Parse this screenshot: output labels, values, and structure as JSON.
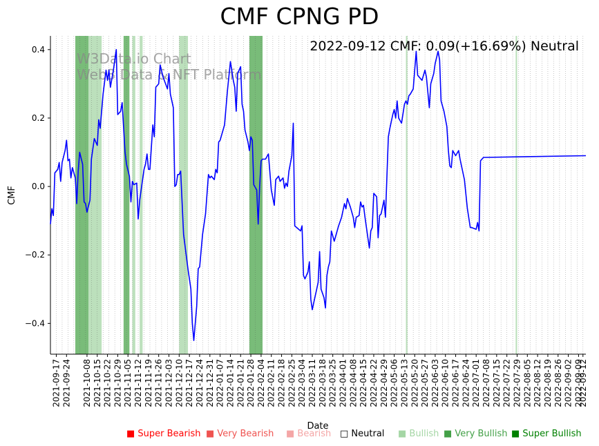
{
  "chart_data": {
    "type": "line",
    "title": "CMF CPNG PD",
    "annotation": "2022-09-12 CMF: 0.09(+16.69%) Neutral",
    "watermark": [
      "W3Data.io Chart",
      "Web3 Data & NFT Platform"
    ],
    "xlabel": "Date",
    "ylabel": "CMF",
    "ylim": [
      -0.49,
      0.44
    ],
    "yticks": [
      -0.4,
      -0.2,
      0.0,
      0.2,
      0.4
    ],
    "ytick_labels": [
      "−0.4",
      "−0.2",
      "0.0",
      "0.2",
      "0.4"
    ],
    "x_start": "2021-09-13",
    "x_end": "2022-09-14",
    "xticks": [
      "2021-09-17",
      "2021-09-24",
      "2021-10-08",
      "2021-10-15",
      "2021-10-22",
      "2021-10-29",
      "2021-11-05",
      "2021-11-12",
      "2021-11-19",
      "2021-11-26",
      "2021-12-03",
      "2021-12-10",
      "2021-12-17",
      "2021-12-24",
      "2021-12-31",
      "2022-01-07",
      "2022-01-14",
      "2022-01-21",
      "2022-01-28",
      "2022-02-04",
      "2022-02-11",
      "2022-02-18",
      "2022-02-25",
      "2022-03-04",
      "2022-03-11",
      "2022-03-18",
      "2022-03-25",
      "2022-04-01",
      "2022-04-08",
      "2022-04-15",
      "2022-04-22",
      "2022-04-29",
      "2022-05-06",
      "2022-05-13",
      "2022-05-20",
      "2022-05-27",
      "2022-06-03",
      "2022-06-10",
      "2022-06-17",
      "2022-06-24",
      "2022-07-01",
      "2022-07-08",
      "2022-07-15",
      "2022-07-22",
      "2022-07-29",
      "2022-08-05",
      "2022-08-12",
      "2022-08-19",
      "2022-08-26",
      "2022-09-02",
      "2022-09-09",
      "2022-09-12"
    ],
    "grid": "vertical dotted",
    "series": [
      {
        "color": "#0000ff",
        "points": [
          [
            "2021-09-13",
            -0.11
          ],
          [
            "2021-09-14",
            -0.065
          ],
          [
            "2021-09-15",
            -0.085
          ],
          [
            "2021-09-16",
            0.04
          ],
          [
            "2021-09-17",
            0.045
          ],
          [
            "2021-09-18",
            0.05
          ],
          [
            "2021-09-19",
            0.07
          ],
          [
            "2021-09-20",
            0.015
          ],
          [
            "2021-09-21",
            0.07
          ],
          [
            "2021-09-23",
            0.105
          ],
          [
            "2021-09-24",
            0.135
          ],
          [
            "2021-09-25",
            0.075
          ],
          [
            "2021-09-26",
            0.08
          ],
          [
            "2021-09-27",
            0.025
          ],
          [
            "2021-09-28",
            0.055
          ],
          [
            "2021-09-30",
            0.025
          ],
          [
            "2021-10-01",
            -0.05
          ],
          [
            "2021-10-02",
            0.045
          ],
          [
            "2021-10-03",
            0.1
          ],
          [
            "2021-10-05",
            0.065
          ],
          [
            "2021-10-06",
            -0.045
          ],
          [
            "2021-10-07",
            -0.05
          ],
          [
            "2021-10-08",
            -0.075
          ],
          [
            "2021-10-10",
            -0.04
          ],
          [
            "2021-10-11",
            0.08
          ],
          [
            "2021-10-13",
            0.14
          ],
          [
            "2021-10-15",
            0.12
          ],
          [
            "2021-10-16",
            0.195
          ],
          [
            "2021-10-17",
            0.17
          ],
          [
            "2021-10-19",
            0.27
          ],
          [
            "2021-10-21",
            0.34
          ],
          [
            "2021-10-22",
            0.31
          ],
          [
            "2021-10-23",
            0.34
          ],
          [
            "2021-10-24",
            0.29
          ],
          [
            "2021-10-26",
            0.34
          ],
          [
            "2021-10-28",
            0.4
          ],
          [
            "2021-10-29",
            0.21
          ],
          [
            "2021-10-31",
            0.22
          ],
          [
            "2021-11-01",
            0.245
          ],
          [
            "2021-11-03",
            0.1
          ],
          [
            "2021-11-04",
            0.065
          ],
          [
            "2021-11-06",
            0.03
          ],
          [
            "2021-11-07",
            -0.045
          ],
          [
            "2021-11-08",
            0.015
          ],
          [
            "2021-11-09",
            0.005
          ],
          [
            "2021-11-11",
            0.01
          ],
          [
            "2021-11-12",
            -0.095
          ],
          [
            "2021-11-13",
            -0.04
          ],
          [
            "2021-11-15",
            0.02
          ],
          [
            "2021-11-16",
            0.05
          ],
          [
            "2021-11-17",
            0.065
          ],
          [
            "2021-11-18",
            0.095
          ],
          [
            "2021-11-19",
            0.05
          ],
          [
            "2021-11-20",
            0.05
          ],
          [
            "2021-11-22",
            0.18
          ],
          [
            "2021-11-23",
            0.145
          ],
          [
            "2021-11-24",
            0.29
          ],
          [
            "2021-11-25",
            0.295
          ],
          [
            "2021-11-26",
            0.3
          ],
          [
            "2021-11-27",
            0.355
          ],
          [
            "2021-11-29",
            0.32
          ],
          [
            "2021-12-02",
            0.285
          ],
          [
            "2021-12-03",
            0.33
          ],
          [
            "2021-12-04",
            0.27
          ],
          [
            "2021-12-06",
            0.23
          ],
          [
            "2021-12-07",
            0.0
          ],
          [
            "2021-12-08",
            0.005
          ],
          [
            "2021-12-09",
            0.035
          ],
          [
            "2021-12-10",
            0.035
          ],
          [
            "2021-12-11",
            0.045
          ],
          [
            "2021-12-13",
            -0.14
          ],
          [
            "2021-12-16",
            -0.24
          ],
          [
            "2021-12-18",
            -0.3
          ],
          [
            "2021-12-19",
            -0.4
          ],
          [
            "2021-12-20",
            -0.45
          ],
          [
            "2021-12-22",
            -0.35
          ],
          [
            "2021-12-23",
            -0.24
          ],
          [
            "2021-12-24",
            -0.235
          ],
          [
            "2021-12-26",
            -0.14
          ],
          [
            "2021-12-28",
            -0.08
          ],
          [
            "2021-12-30",
            0.035
          ],
          [
            "2021-12-31",
            0.025
          ],
          [
            "2022-01-01",
            0.03
          ],
          [
            "2022-01-03",
            0.02
          ],
          [
            "2022-01-04",
            0.05
          ],
          [
            "2022-01-05",
            0.04
          ],
          [
            "2022-01-06",
            0.13
          ],
          [
            "2022-01-07",
            0.135
          ],
          [
            "2022-01-10",
            0.18
          ],
          [
            "2022-01-12",
            0.28
          ],
          [
            "2022-01-14",
            0.365
          ],
          [
            "2022-01-16",
            0.31
          ],
          [
            "2022-01-17",
            0.29
          ],
          [
            "2022-01-18",
            0.22
          ],
          [
            "2022-01-19",
            0.33
          ],
          [
            "2022-01-21",
            0.35
          ],
          [
            "2022-01-22",
            0.24
          ],
          [
            "2022-01-23",
            0.22
          ],
          [
            "2022-01-24",
            0.165
          ],
          [
            "2022-01-26",
            0.13
          ],
          [
            "2022-01-27",
            0.105
          ],
          [
            "2022-01-28",
            0.145
          ],
          [
            "2022-01-29",
            0.135
          ],
          [
            "2022-01-30",
            0.005
          ],
          [
            "2022-02-01",
            -0.01
          ],
          [
            "2022-02-02",
            -0.11
          ],
          [
            "2022-02-03",
            0.0
          ],
          [
            "2022-02-04",
            0.075
          ],
          [
            "2022-02-05",
            0.08
          ],
          [
            "2022-02-07",
            0.08
          ],
          [
            "2022-02-09",
            0.095
          ],
          [
            "2022-02-11",
            -0.01
          ],
          [
            "2022-02-13",
            -0.055
          ],
          [
            "2022-02-14",
            0.02
          ],
          [
            "2022-02-16",
            0.03
          ],
          [
            "2022-02-17",
            0.015
          ],
          [
            "2022-02-19",
            0.025
          ],
          [
            "2022-02-20",
            -0.005
          ],
          [
            "2022-02-21",
            0.01
          ],
          [
            "2022-02-22",
            0.0
          ],
          [
            "2022-02-23",
            0.045
          ],
          [
            "2022-02-25",
            0.09
          ],
          [
            "2022-02-26",
            0.185
          ],
          [
            "2022-02-27",
            -0.115
          ],
          [
            "2022-03-03",
            -0.13
          ],
          [
            "2022-03-04",
            -0.115
          ],
          [
            "2022-03-05",
            -0.26
          ],
          [
            "2022-03-06",
            -0.27
          ],
          [
            "2022-03-08",
            -0.25
          ],
          [
            "2022-03-09",
            -0.22
          ],
          [
            "2022-03-10",
            -0.33
          ],
          [
            "2022-03-11",
            -0.36
          ],
          [
            "2022-03-12",
            -0.34
          ],
          [
            "2022-03-14",
            -0.3
          ],
          [
            "2022-03-15",
            -0.28
          ],
          [
            "2022-03-16",
            -0.19
          ],
          [
            "2022-03-17",
            -0.3
          ],
          [
            "2022-03-19",
            -0.325
          ],
          [
            "2022-03-20",
            -0.355
          ],
          [
            "2022-03-21",
            -0.26
          ],
          [
            "2022-03-22",
            -0.235
          ],
          [
            "2022-03-23",
            -0.22
          ],
          [
            "2022-03-24",
            -0.13
          ],
          [
            "2022-03-26",
            -0.16
          ],
          [
            "2022-03-28",
            -0.13
          ],
          [
            "2022-03-29",
            -0.115
          ],
          [
            "2022-03-31",
            -0.09
          ],
          [
            "2022-04-02",
            -0.05
          ],
          [
            "2022-04-03",
            -0.065
          ],
          [
            "2022-04-04",
            -0.035
          ],
          [
            "2022-04-06",
            -0.06
          ],
          [
            "2022-04-08",
            -0.09
          ],
          [
            "2022-04-09",
            -0.12
          ],
          [
            "2022-04-10",
            -0.09
          ],
          [
            "2022-04-12",
            -0.085
          ],
          [
            "2022-04-13",
            -0.045
          ],
          [
            "2022-04-14",
            -0.06
          ],
          [
            "2022-04-15",
            -0.055
          ],
          [
            "2022-04-16",
            -0.09
          ],
          [
            "2022-04-18",
            -0.15
          ],
          [
            "2022-04-19",
            -0.18
          ],
          [
            "2022-04-20",
            -0.13
          ],
          [
            "2022-04-21",
            -0.12
          ],
          [
            "2022-04-22",
            -0.02
          ],
          [
            "2022-04-24",
            -0.03
          ],
          [
            "2022-04-25",
            -0.15
          ],
          [
            "2022-04-26",
            -0.085
          ],
          [
            "2022-04-27",
            -0.08
          ],
          [
            "2022-04-29",
            -0.04
          ],
          [
            "2022-04-30",
            -0.09
          ],
          [
            "2022-05-02",
            0.145
          ],
          [
            "2022-05-03",
            0.17
          ],
          [
            "2022-05-05",
            0.21
          ],
          [
            "2022-05-06",
            0.225
          ],
          [
            "2022-05-07",
            0.2
          ],
          [
            "2022-05-08",
            0.25
          ],
          [
            "2022-05-09",
            0.2
          ],
          [
            "2022-05-11",
            0.185
          ],
          [
            "2022-05-13",
            0.24
          ],
          [
            "2022-05-14",
            0.25
          ],
          [
            "2022-05-15",
            0.24
          ],
          [
            "2022-05-16",
            0.265
          ],
          [
            "2022-05-17",
            0.27
          ],
          [
            "2022-05-19",
            0.285
          ],
          [
            "2022-05-21",
            0.395
          ],
          [
            "2022-05-22",
            0.325
          ],
          [
            "2022-05-25",
            0.31
          ],
          [
            "2022-05-27",
            0.34
          ],
          [
            "2022-05-28",
            0.32
          ],
          [
            "2022-05-30",
            0.23
          ],
          [
            "2022-05-31",
            0.3
          ],
          [
            "2022-06-02",
            0.33
          ],
          [
            "2022-06-03",
            0.36
          ],
          [
            "2022-06-05",
            0.395
          ],
          [
            "2022-06-06",
            0.37
          ],
          [
            "2022-06-07",
            0.25
          ],
          [
            "2022-06-09",
            0.22
          ],
          [
            "2022-06-11",
            0.175
          ],
          [
            "2022-06-12",
            0.105
          ],
          [
            "2022-06-13",
            0.06
          ],
          [
            "2022-06-14",
            0.055
          ],
          [
            "2022-06-15",
            0.105
          ],
          [
            "2022-06-17",
            0.09
          ],
          [
            "2022-06-19",
            0.105
          ],
          [
            "2022-06-20",
            0.08
          ],
          [
            "2022-06-23",
            0.02
          ],
          [
            "2022-06-25",
            -0.065
          ],
          [
            "2022-06-27",
            -0.12
          ],
          [
            "2022-06-28",
            -0.12
          ],
          [
            "2022-07-01",
            -0.125
          ],
          [
            "2022-07-02",
            -0.105
          ],
          [
            "2022-07-03",
            -0.13
          ],
          [
            "2022-07-04",
            0.075
          ],
          [
            "2022-07-06",
            0.085
          ],
          [
            "2022-09-14",
            0.09
          ]
        ]
      }
    ],
    "bands": [
      {
        "start": "2021-09-30",
        "end": "2021-10-09",
        "level": "very_bullish"
      },
      {
        "start": "2021-10-09",
        "end": "2021-10-18",
        "level": "bullish"
      },
      {
        "start": "2021-11-02",
        "end": "2021-11-06",
        "level": "very_bullish"
      },
      {
        "start": "2021-11-08",
        "end": "2021-11-10",
        "level": "bullish"
      },
      {
        "start": "2021-11-13",
        "end": "2021-11-15",
        "level": "bullish"
      },
      {
        "start": "2021-12-10",
        "end": "2021-12-16",
        "level": "bullish"
      },
      {
        "start": "2022-01-27",
        "end": "2022-02-05",
        "level": "very_bullish"
      },
      {
        "start": "2022-05-14",
        "end": "2022-05-15",
        "level": "bullish"
      },
      {
        "start": "2022-07-28",
        "end": "2022-07-29",
        "level": "bullish"
      }
    ],
    "colors": {
      "very_bullish": "#4ca64c",
      "bullish": "#a5d6a5"
    }
  },
  "legend": [
    {
      "marker": "■",
      "label": "Super Bearish",
      "color": "#ff0000"
    },
    {
      "marker": "■",
      "label": "Very Bearish",
      "color": "#ef5350"
    },
    {
      "marker": "■",
      "label": "Bearish",
      "color": "#f4a6a6"
    },
    {
      "marker": "□",
      "label": "Neutral",
      "color": "#000000"
    },
    {
      "marker": "■",
      "label": "Bullish",
      "color": "#a5d6a5"
    },
    {
      "marker": "■",
      "label": "Very Bullish",
      "color": "#43a047"
    },
    {
      "marker": "■",
      "label": "Super Bullish",
      "color": "#008000"
    }
  ]
}
